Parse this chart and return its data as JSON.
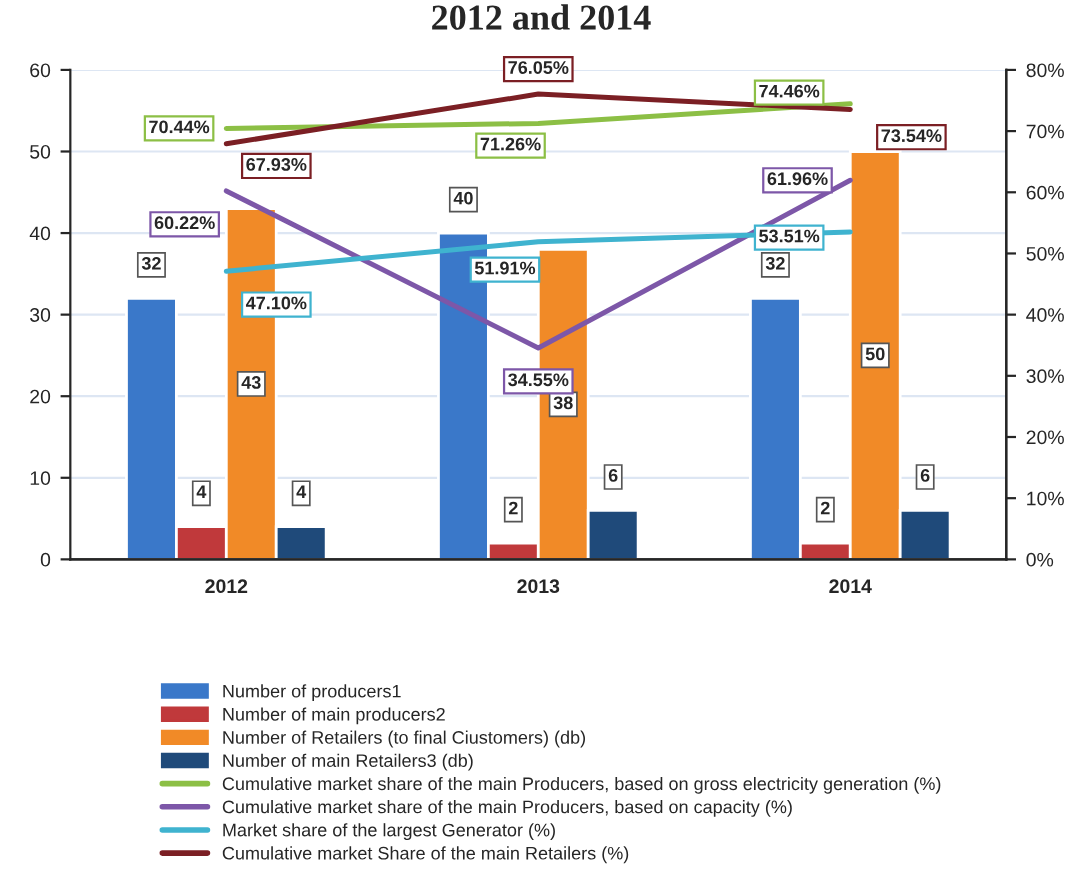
{
  "chart_data": {
    "type": "bar",
    "title": "2012 and 2014",
    "categories": [
      "2012",
      "2013",
      "2014"
    ],
    "series": [
      {
        "name": "Number of producers1",
        "color": "#3a78c9",
        "values": [
          32,
          40,
          32
        ],
        "value_labels": [
          "32",
          "40",
          "32"
        ]
      },
      {
        "name": "Number of main producers2",
        "color": "#c0393b",
        "values": [
          4,
          2,
          2
        ],
        "value_labels": [
          "4",
          "2",
          "2"
        ]
      },
      {
        "name": "Number of Retailers (to final Ciustomers) (db)",
        "color": "#f18a27",
        "values": [
          43,
          38,
          50
        ],
        "value_labels": [
          "43",
          "38",
          "50"
        ]
      },
      {
        "name": "Number of main Retailers3 (db)",
        "color": "#1f4a7a",
        "values": [
          4,
          6,
          6
        ],
        "value_labels": [
          "4",
          "6",
          "6"
        ]
      },
      {
        "name": "Cumulative market share of the main Producers, based on gross electricity generation (%)",
        "type": "line",
        "axis": "y2",
        "color": "#8cbf45",
        "values": [
          70.44,
          71.26,
          74.46
        ],
        "value_labels": [
          "70.44%",
          "71.26%",
          "74.46%"
        ]
      },
      {
        "name": "Cumulative market share of the main Producers, based on capacity (%)",
        "type": "line",
        "axis": "y2",
        "color": "#7d57a8",
        "values": [
          60.22,
          34.55,
          61.96
        ],
        "value_labels": [
          "60.22%",
          "34.55%",
          "61.96%"
        ]
      },
      {
        "name": "Market share of the largest Generator (%)",
        "type": "line",
        "axis": "y2",
        "color": "#3fb3cf",
        "values": [
          47.1,
          51.91,
          53.51
        ],
        "value_labels": [
          "47.10%",
          "51.91%",
          "53.51%"
        ]
      },
      {
        "name": "Cumulative market Share of the main Retailers (%)",
        "type": "line",
        "axis": "y2",
        "color": "#7b1f24",
        "values": [
          67.93,
          76.05,
          73.54
        ],
        "value_labels": [
          "67.93%",
          "76.05%",
          "73.54%"
        ]
      }
    ],
    "ylim": [
      0,
      60
    ],
    "yticks": [
      0,
      10,
      20,
      30,
      40,
      50,
      60
    ],
    "y2lim": [
      0,
      80
    ],
    "y2ticks": [
      {
        "value": 0,
        "label": "0%"
      },
      {
        "value": 10,
        "label": "10%"
      },
      {
        "value": 20,
        "label": "20%"
      },
      {
        "value": 30,
        "label": "30%"
      },
      {
        "value": 40,
        "label": "40%"
      },
      {
        "value": 50,
        "label": "50%"
      },
      {
        "value": 60,
        "label": "60%"
      },
      {
        "value": 70,
        "label": "70%"
      },
      {
        "value": 80,
        "label": "80%"
      }
    ],
    "grid": "y",
    "legend": "bottom",
    "marker": "none",
    "line_style": "solid"
  }
}
